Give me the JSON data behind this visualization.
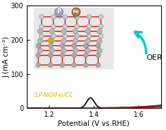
{
  "title": "",
  "xlabel": "Potential (V vs.RHE)",
  "ylabel": "J (mA cm⁻²)",
  "xlim": [
    1.1,
    1.7
  ],
  "ylim": [
    0,
    300
  ],
  "yticks": [
    0,
    100,
    200,
    300
  ],
  "xticks": [
    1.2,
    1.4,
    1.6
  ],
  "bg_color": "#ffffff",
  "line_red_color": "#cc0000",
  "line_black_color": "#1a1a1a",
  "annotation_text": "OER",
  "arrow_color": "#00c8d4",
  "label_text": "S,P-NiO(Fe)/CC",
  "ni_color": "#b8b8b8",
  "o_color": "#cc1100",
  "p_color": "#a0a0c0",
  "fe_color": "#b87333",
  "s_color": "#c8b400",
  "figsize": [
    2.41,
    1.89
  ],
  "dpi": 100
}
